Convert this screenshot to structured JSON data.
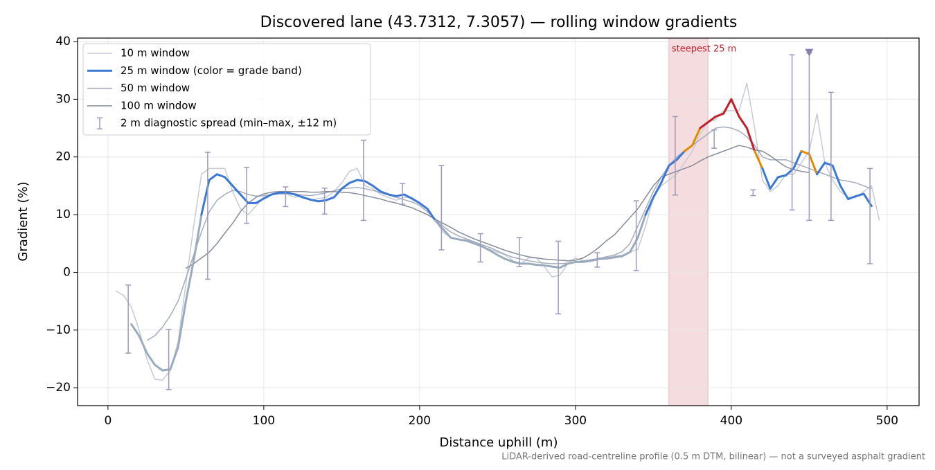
{
  "chart_data": {
    "type": "line",
    "title": "Discovered lane (43.7312, 7.3057) — rolling window gradients",
    "x_label": "Distance uphill (m)",
    "y_label": "Gradient (%)",
    "footnote": "LiDAR-derived road-centreline profile (0.5 m DTM, bilinear) — not a surveyed asphalt gradient",
    "xlim": [
      -19.5,
      520.5
    ],
    "ylim": [
      -23.1,
      40.6
    ],
    "xticks": [
      0,
      100,
      200,
      300,
      400,
      500
    ],
    "yticks": [
      {
        "value": -20,
        "label": "−20"
      },
      {
        "value": -10,
        "label": "−10"
      },
      0,
      10,
      20,
      30,
      40
    ],
    "grid": true,
    "legend": "upper left",
    "highlight": {
      "x0": 360,
      "x1": 385,
      "label": "steepest 25 m",
      "color": "#f5dcdf",
      "label_color": "#c0202c"
    },
    "x": [
      5,
      10,
      15,
      20,
      25,
      30,
      35,
      40,
      45,
      50,
      55,
      60,
      65,
      70,
      75,
      80,
      85,
      90,
      95,
      100,
      105,
      110,
      115,
      120,
      125,
      130,
      135,
      140,
      145,
      150,
      155,
      160,
      165,
      170,
      175,
      180,
      185,
      190,
      195,
      200,
      205,
      210,
      215,
      220,
      225,
      230,
      235,
      240,
      245,
      250,
      255,
      260,
      265,
      270,
      275,
      280,
      285,
      290,
      295,
      300,
      305,
      310,
      315,
      320,
      325,
      330,
      335,
      340,
      345,
      350,
      355,
      360,
      365,
      370,
      375,
      380,
      385,
      390,
      395,
      400,
      405,
      410,
      415,
      420,
      425,
      430,
      435,
      440,
      445,
      450,
      455,
      460,
      465,
      470,
      475,
      480,
      485,
      490,
      495
    ],
    "series": [
      {
        "name": "10 m window",
        "color": "#c5cad6",
        "width": 1.5,
        "values": [
          -3.2,
          -4,
          -6,
          -10,
          -15,
          -18.5,
          -18.7,
          -17,
          -12,
          -2,
          8,
          17,
          18,
          18,
          18,
          14,
          11,
          10,
          11.5,
          13,
          13.5,
          13.5,
          13.5,
          13,
          13.2,
          12.5,
          12.8,
          13,
          14,
          15.5,
          17.5,
          18,
          15,
          14.5,
          13.5,
          13,
          12.5,
          13,
          13,
          12,
          11,
          9,
          7,
          6,
          5.8,
          5.5,
          5,
          4.5,
          4,
          3.5,
          3,
          2,
          1.5,
          2.5,
          2.5,
          1,
          -0.8,
          -0.5,
          1.5,
          2.5,
          2,
          2,
          2.5,
          2.5,
          2.8,
          3,
          3.5,
          4,
          8,
          13,
          15,
          16,
          17,
          19,
          21,
          24,
          26,
          26.5,
          28,
          28,
          28,
          32.8,
          25,
          16,
          14,
          15,
          17,
          17,
          19,
          21,
          27.5,
          19,
          16,
          14,
          13,
          13,
          14,
          15,
          9
        ]
      },
      {
        "name": "25 m window (color = grade band)",
        "color": "#3a78d4",
        "width": 3,
        "band_edges": [
          10,
          20,
          25
        ],
        "band_colors": [
          "#9aabbd",
          "#3a78d4",
          "#e08a00",
          "#c0202c"
        ],
        "values": [
          null,
          null,
          -9,
          -11,
          -14,
          -16,
          -17,
          -16.8,
          -13,
          -5,
          2,
          10,
          16,
          17,
          16.5,
          15,
          13.5,
          12,
          12,
          12.8,
          13.5,
          13.8,
          13.8,
          13.5,
          13,
          12.6,
          12.3,
          12.5,
          13,
          14.5,
          15.5,
          16,
          15.8,
          15,
          14,
          13.5,
          13.2,
          13.5,
          12.8,
          12,
          11,
          9,
          7.5,
          6,
          5.7,
          5.5,
          5,
          4.5,
          3.8,
          3,
          2.3,
          1.8,
          1.5,
          1.5,
          1.3,
          1.2,
          1,
          0.8,
          1.5,
          1.8,
          1.8,
          2,
          2.3,
          2.4,
          2.6,
          2.8,
          3.5,
          6,
          10,
          13,
          15.5,
          18.5,
          19.5,
          21,
          22,
          25,
          26,
          27,
          27.5,
          30,
          27,
          25,
          21,
          18,
          14.5,
          16.5,
          16.8,
          18,
          21,
          20.5,
          17,
          19,
          18.5,
          15,
          12.7,
          13.2,
          13.6,
          11.5,
          null
        ]
      },
      {
        "name": "50 m window",
        "color": "#a3acbd",
        "width": 1.5,
        "values": [
          null,
          null,
          null,
          null,
          -11.8,
          -11,
          -9.5,
          -7.5,
          -5,
          -1,
          3,
          7,
          10.5,
          12.5,
          13.5,
          14.2,
          14,
          13.5,
          13.2,
          13.3,
          13.5,
          13.7,
          13.8,
          13.6,
          13.4,
          13.3,
          13.5,
          13.8,
          14.1,
          14.5,
          14.6,
          14.7,
          14.5,
          14.2,
          13.8,
          13.4,
          13,
          12.6,
          12.2,
          11.6,
          10.5,
          9.3,
          8,
          7,
          6.3,
          5.8,
          5.3,
          4.8,
          4.3,
          3.7,
          3.1,
          2.6,
          2.3,
          2,
          1.8,
          1.6,
          1.5,
          1.5,
          1.6,
          1.8,
          2,
          2.2,
          2.4,
          2.7,
          3,
          3.6,
          5,
          8,
          11,
          14,
          16.5,
          18.5,
          20,
          21,
          22,
          23,
          24,
          25,
          25.2,
          25,
          24.5,
          23.5,
          22,
          20,
          19.5,
          19.5,
          19.5,
          19,
          18.5,
          18,
          17.5,
          17,
          16.5,
          16,
          15.8,
          15.5,
          15,
          14.5,
          null
        ]
      },
      {
        "name": "100 m window",
        "color": "#858b9a",
        "width": 1.5,
        "values": [
          null,
          null,
          null,
          null,
          null,
          null,
          null,
          null,
          null,
          0.7,
          1.5,
          2.5,
          3.5,
          5,
          6.8,
          8.5,
          10.5,
          12,
          13,
          13.6,
          13.9,
          14,
          14,
          14,
          14,
          13.9,
          13.9,
          14,
          14,
          13.9,
          13.8,
          13.6,
          13.3,
          13,
          12.7,
          12.3,
          12,
          11.6,
          11.2,
          10.6,
          10,
          9.2,
          8.5,
          7.8,
          7,
          6.4,
          5.8,
          5.3,
          4.8,
          4.3,
          3.8,
          3.4,
          3,
          2.7,
          2.5,
          2.3,
          2.2,
          2.1,
          2,
          2.1,
          2.5,
          3.3,
          4.3,
          5.5,
          6.5,
          8,
          9.5,
          11,
          13,
          15,
          16.5,
          17,
          17.5,
          18,
          18.5,
          19.3,
          20,
          20.5,
          21,
          21.5,
          22,
          21.7,
          21.2,
          21,
          20.2,
          19.2,
          18.3,
          17.8,
          17.5,
          17.3,
          null,
          null,
          null,
          null,
          null,
          null,
          null,
          null,
          null
        ]
      }
    ],
    "errorbars": {
      "name": "2 m diagnostic spread (min–max, ±12 m)",
      "color": "#9d98bd",
      "x": [
        13,
        39,
        64,
        89,
        114,
        139,
        164,
        189,
        214,
        239,
        264,
        289,
        314,
        339,
        364,
        389,
        414,
        439,
        450,
        464,
        489
      ],
      "low": [
        -14,
        -20.3,
        -1.2,
        8.5,
        11.4,
        10.1,
        9,
        11.8,
        3.9,
        1.8,
        1,
        -7.2,
        0.9,
        0.3,
        13.4,
        21.5,
        13.3,
        10.8,
        9,
        9,
        1.5
      ],
      "high": [
        -2.2,
        -9.9,
        20.8,
        18.2,
        14.8,
        14.6,
        22.9,
        15.4,
        18.5,
        6.7,
        6,
        5.4,
        3.4,
        12.4,
        27,
        24.7,
        14.3,
        37.7,
        38,
        31.2,
        18
      ]
    },
    "markers": {
      "x": [
        450
      ],
      "y": [
        38
      ],
      "color": "#8a7fb0"
    }
  }
}
